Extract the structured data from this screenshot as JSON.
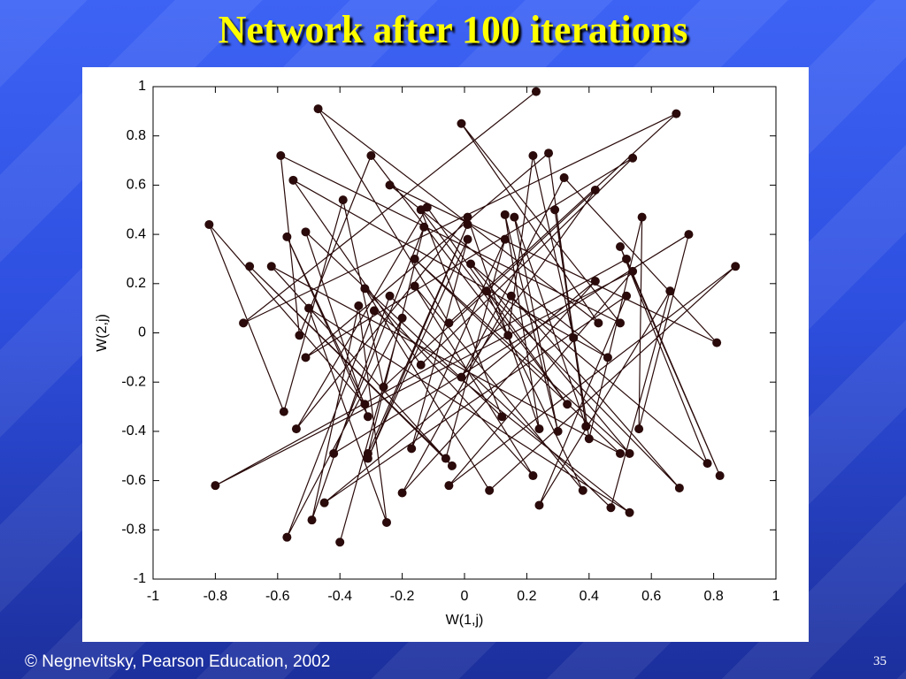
{
  "slide": {
    "title": "Network after 100 iterations",
    "footer": "© Negnevitsky, Pearson Education, 2002",
    "page_number": "35"
  },
  "chart_data": {
    "type": "line",
    "xlabel": "W(1,j)",
    "ylabel": "W(2,j)",
    "xlim": [
      -1,
      1
    ],
    "ylim": [
      -1,
      1
    ],
    "xticks": [
      -1,
      -0.8,
      -0.6,
      -0.4,
      -0.2,
      0,
      0.2,
      0.4,
      0.6,
      0.8,
      1
    ],
    "yticks": [
      -1,
      -0.8,
      -0.6,
      -0.4,
      -0.2,
      0,
      0.2,
      0.4,
      0.6,
      0.8,
      1
    ],
    "grid": false,
    "series": [
      {
        "color": "#2a0a0a",
        "x": [
          0.23,
          -0.71,
          0.68,
          -0.05,
          -0.47,
          0.43,
          -0.01,
          0.5,
          -0.59,
          -0.53,
          -0.3,
          0.14,
          0.22,
          0.35,
          0.27,
          -0.51,
          0.54,
          -0.14,
          -0.55,
          0.46,
          -0.24,
          0.81,
          0.32,
          -0.01,
          0.42,
          -0.26,
          -0.39,
          -0.58,
          -0.82,
          -0.32,
          -0.57,
          -0.31,
          -0.51,
          0.12,
          -0.14,
          0.33,
          -0.12,
          -0.54,
          0.01,
          0.24,
          0.13,
          0.3,
          0.16,
          0.39,
          0.29,
          0.4,
          0.57,
          0.56,
          0.72,
          -0.42,
          -0.13,
          -0.31,
          0.01,
          -0.31,
          0.01,
          -0.17,
          0.13,
          -0.06,
          -0.69,
          -0.04,
          -0.62,
          0.5,
          -0.16,
          0.53,
          0.02,
          0.78,
          0.5,
          0.82,
          0.52,
          -0.8,
          0.54,
          -0.05,
          0.87,
          0.08,
          -0.32,
          0.22,
          -0.16,
          0.38,
          0.07,
          0.69,
          0.15,
          -0.2,
          0.42,
          -0.45,
          0.52,
          0.24,
          0.66,
          0.47,
          -0.24,
          -0.49,
          -0.34,
          -0.25,
          -0.5,
          0.53,
          -0.29,
          -0.57,
          -0.2,
          -0.4
        ],
        "values": [
          0.98,
          0.04,
          0.89,
          0.04,
          0.91,
          0.04,
          0.85,
          0.04,
          0.72,
          -0.01,
          0.72,
          -0.01,
          0.72,
          -0.02,
          0.73,
          -0.1,
          0.71,
          -0.13,
          0.62,
          -0.1,
          0.6,
          -0.04,
          0.63,
          -0.18,
          0.58,
          -0.22,
          0.54,
          -0.32,
          0.44,
          -0.29,
          0.39,
          -0.34,
          0.41,
          -0.34,
          0.5,
          -0.29,
          0.51,
          -0.39,
          0.47,
          -0.39,
          0.48,
          -0.4,
          0.47,
          -0.38,
          0.5,
          -0.43,
          0.47,
          -0.39,
          0.4,
          -0.49,
          0.43,
          -0.49,
          0.44,
          -0.51,
          0.38,
          -0.47,
          0.38,
          -0.51,
          0.27,
          -0.54,
          0.27,
          -0.49,
          0.3,
          -0.49,
          0.28,
          -0.53,
          0.35,
          -0.58,
          0.3,
          -0.62,
          0.25,
          -0.62,
          0.27,
          -0.64,
          0.18,
          -0.58,
          0.19,
          -0.64,
          0.17,
          -0.63,
          0.15,
          -0.65,
          0.21,
          -0.69,
          0.15,
          -0.7,
          0.17,
          -0.71,
          0.15,
          -0.76,
          0.11,
          -0.77,
          0.1,
          -0.73,
          0.09,
          -0.83,
          0.06,
          -0.85
        ]
      }
    ]
  }
}
